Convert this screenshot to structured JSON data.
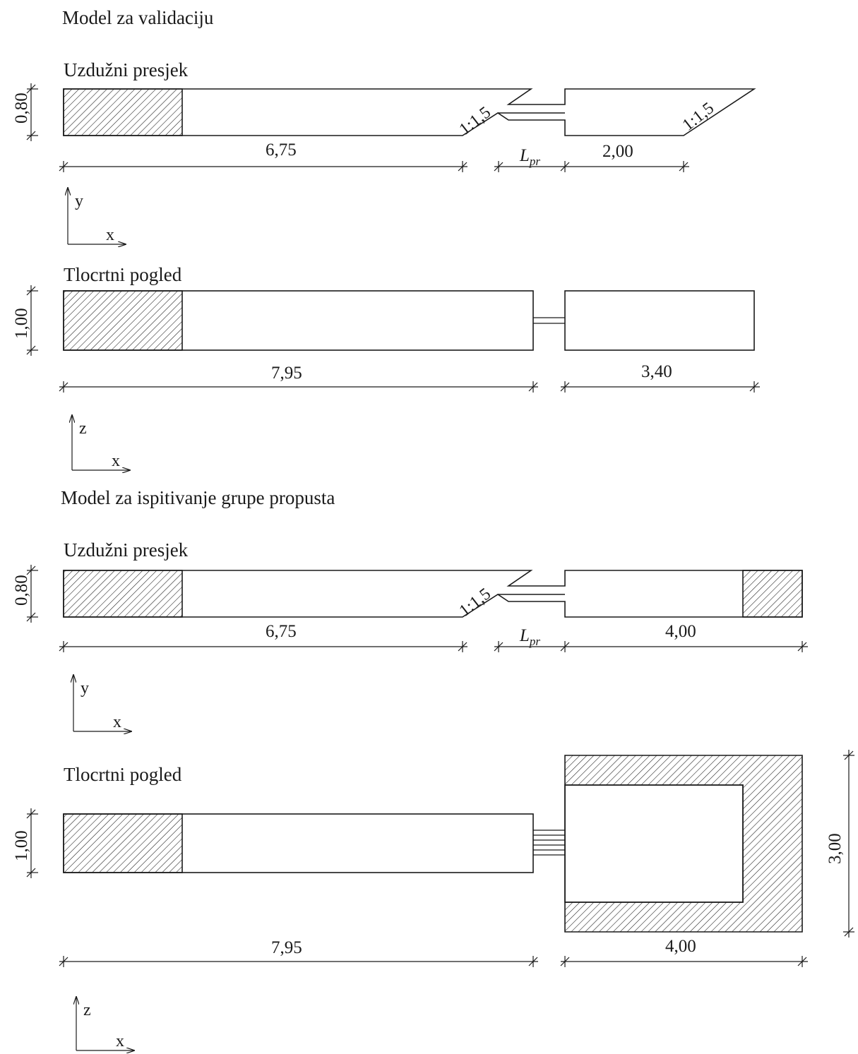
{
  "sections": {
    "validation": {
      "title": "Model za validaciju",
      "longitudinal": {
        "title": "Uzdužni presjek",
        "height_dim": "0,80",
        "channel_length_dim": "6,75",
        "culvert_length_dim": "L",
        "culvert_length_sub": "pr",
        "outlet_length_dim": "2,00",
        "slope_left": "1:1,5",
        "slope_right": "1:1,5",
        "axis": {
          "vertical": "y",
          "horizontal": "x"
        }
      },
      "plan": {
        "title": "Tlocrtni pogled",
        "width_dim": "1,00",
        "channel_length_dim": "7,95",
        "outlet_length_dim": "3,40",
        "axis": {
          "vertical": "z",
          "horizontal": "x"
        }
      }
    },
    "group": {
      "title": "Model za ispitivanje grupe propusta",
      "longitudinal": {
        "title": "Uzdužni presjek",
        "height_dim": "0,80",
        "channel_length_dim": "6,75",
        "culvert_length_dim": "L",
        "culvert_length_sub": "pr",
        "outlet_length_dim": "4,00",
        "slope_left": "1:1,5",
        "axis": {
          "vertical": "y",
          "horizontal": "x"
        }
      },
      "plan": {
        "title": "Tlocrtni pogled",
        "width_dim": "1,00",
        "channel_length_dim": "7,95",
        "outlet_length_dim": "4,00",
        "outlet_width_dim": "3,00",
        "culvert_count": 4,
        "axis": {
          "vertical": "z",
          "horizontal": "x"
        }
      }
    }
  },
  "colors": {
    "line": "#1a1a1a",
    "background": "#ffffff"
  }
}
